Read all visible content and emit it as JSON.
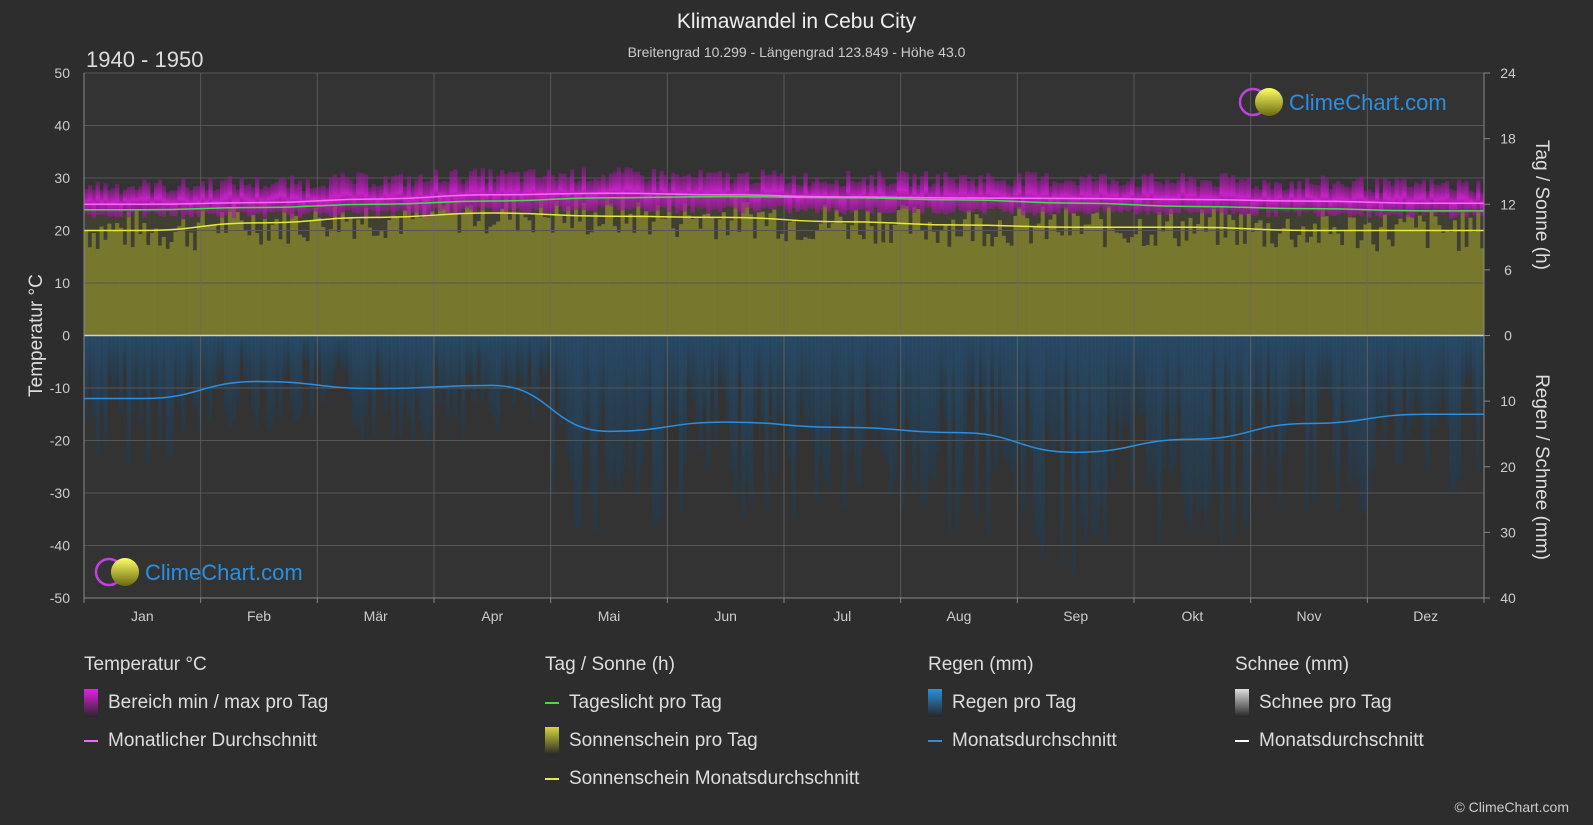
{
  "header": {
    "title": "Klimawandel in Cebu City",
    "subtitle": "Breitengrad 10.299 - Längengrad 123.849 - Höhe 43.0",
    "period": "1940 - 1950"
  },
  "brand": {
    "logo_text": "ClimeChart.com",
    "copyright": "© ClimeChart.com"
  },
  "colors": {
    "background": "#2d2d2d",
    "temp_range": "#c81ec8",
    "temp_avg": "#ff66ff",
    "daylight": "#44dd44",
    "sunshine_bar": "#8c8c2a",
    "sunshine_avg": "#e8e83a",
    "rain_bar": "#1f5a8c",
    "rain_avg": "#2a8fe0",
    "snow_avg": "#ffffff",
    "brand_blue": "#2a8fe0"
  },
  "legend": {
    "groups": [
      {
        "heading": "Temperatur °C",
        "items": [
          {
            "label": "Bereich min / max pro Tag",
            "swatch": "box",
            "color": "#e81ee8"
          },
          {
            "label": "Monatlicher Durchschnitt",
            "swatch": "line",
            "color": "#ff66ff"
          }
        ]
      },
      {
        "heading": "Tag / Sonne (h)",
        "items": [
          {
            "label": "Tageslicht pro Tag",
            "swatch": "line",
            "color": "#44dd44"
          },
          {
            "label": "Sonnenschein pro Tag",
            "swatch": "box",
            "color": "#d6d63a"
          },
          {
            "label": "Sonnenschein Monatsdurchschnitt",
            "swatch": "line",
            "color": "#e8e83a"
          }
        ]
      },
      {
        "heading": "Regen (mm)",
        "items": [
          {
            "label": "Regen pro Tag",
            "swatch": "box",
            "color": "#2a8fe0"
          },
          {
            "label": "Monatsdurchschnitt",
            "swatch": "line",
            "color": "#2a8fe0"
          }
        ]
      },
      {
        "heading": "Schnee (mm)",
        "items": [
          {
            "label": "Schnee pro Tag",
            "swatch": "box",
            "color": "#dddddd"
          },
          {
            "label": "Monatsdurchschnitt",
            "swatch": "line",
            "color": "#ffffff"
          }
        ]
      }
    ]
  },
  "chart_data": {
    "type": "area",
    "categories": [
      "Jan",
      "Feb",
      "Mär",
      "Apr",
      "Mai",
      "Jun",
      "Jul",
      "Aug",
      "Sep",
      "Okt",
      "Nov",
      "Dez"
    ],
    "axes": {
      "left": {
        "label": "Temperatur °C",
        "min": -50,
        "max": 50,
        "ticks": [
          50,
          40,
          30,
          20,
          10,
          0,
          -10,
          -20,
          -30,
          -40,
          -50
        ]
      },
      "right_top": {
        "label": "Tag / Sonne (h)",
        "min": 0,
        "max": 24,
        "ticks": [
          24,
          18,
          12,
          6,
          0
        ]
      },
      "right_bottom": {
        "label": "Regen / Schnee (mm)",
        "min": 0,
        "max": 40,
        "ticks": [
          0,
          10,
          20,
          30,
          40
        ]
      }
    },
    "grid": true,
    "series": [
      {
        "name": "Bereich min / max pro Tag",
        "kind": "band",
        "axis": "temperature",
        "min": [
          23.0,
          23.0,
          23.3,
          23.8,
          24.2,
          24.0,
          23.8,
          23.8,
          23.6,
          23.5,
          23.3,
          23.0
        ],
        "max": [
          28.5,
          29.0,
          29.6,
          30.4,
          30.6,
          30.2,
          29.9,
          29.9,
          29.8,
          29.5,
          29.0,
          28.6
        ]
      },
      {
        "name": "Monatlicher Durchschnitt",
        "kind": "line",
        "axis": "temperature",
        "values": [
          25.0,
          25.3,
          26.0,
          26.8,
          27.1,
          26.8,
          26.4,
          26.2,
          26.1,
          25.9,
          25.6,
          25.2
        ]
      },
      {
        "name": "Tageslicht pro Tag",
        "kind": "line",
        "axis": "hours",
        "values": [
          11.5,
          11.7,
          12.0,
          12.3,
          12.6,
          12.7,
          12.6,
          12.4,
          12.1,
          11.8,
          11.6,
          11.4
        ]
      },
      {
        "name": "Sonnenschein pro Tag",
        "kind": "bars",
        "axis": "hours",
        "values": [
          9.6,
          10.3,
          10.8,
          11.2,
          10.9,
          10.8,
          10.4,
          10.1,
          9.9,
          9.9,
          9.6,
          9.6
        ]
      },
      {
        "name": "Sonnenschein Monatsdurchschnitt",
        "kind": "line",
        "axis": "hours",
        "values": [
          9.6,
          10.3,
          10.8,
          11.2,
          10.9,
          10.8,
          10.4,
          10.1,
          9.9,
          9.9,
          9.6,
          9.6
        ]
      },
      {
        "name": "Regen pro Tag",
        "kind": "bars",
        "axis": "precipitation",
        "values": [
          9.6,
          7.0,
          8.1,
          7.6,
          14.6,
          13.2,
          14.0,
          14.8,
          17.8,
          15.8,
          13.4,
          12.0
        ]
      },
      {
        "name": "Monatsdurchschnitt",
        "kind": "line",
        "axis": "precipitation",
        "values": [
          9.6,
          7.0,
          8.1,
          7.6,
          14.6,
          13.2,
          14.0,
          14.8,
          17.8,
          15.8,
          13.4,
          12.0
        ]
      }
    ]
  }
}
